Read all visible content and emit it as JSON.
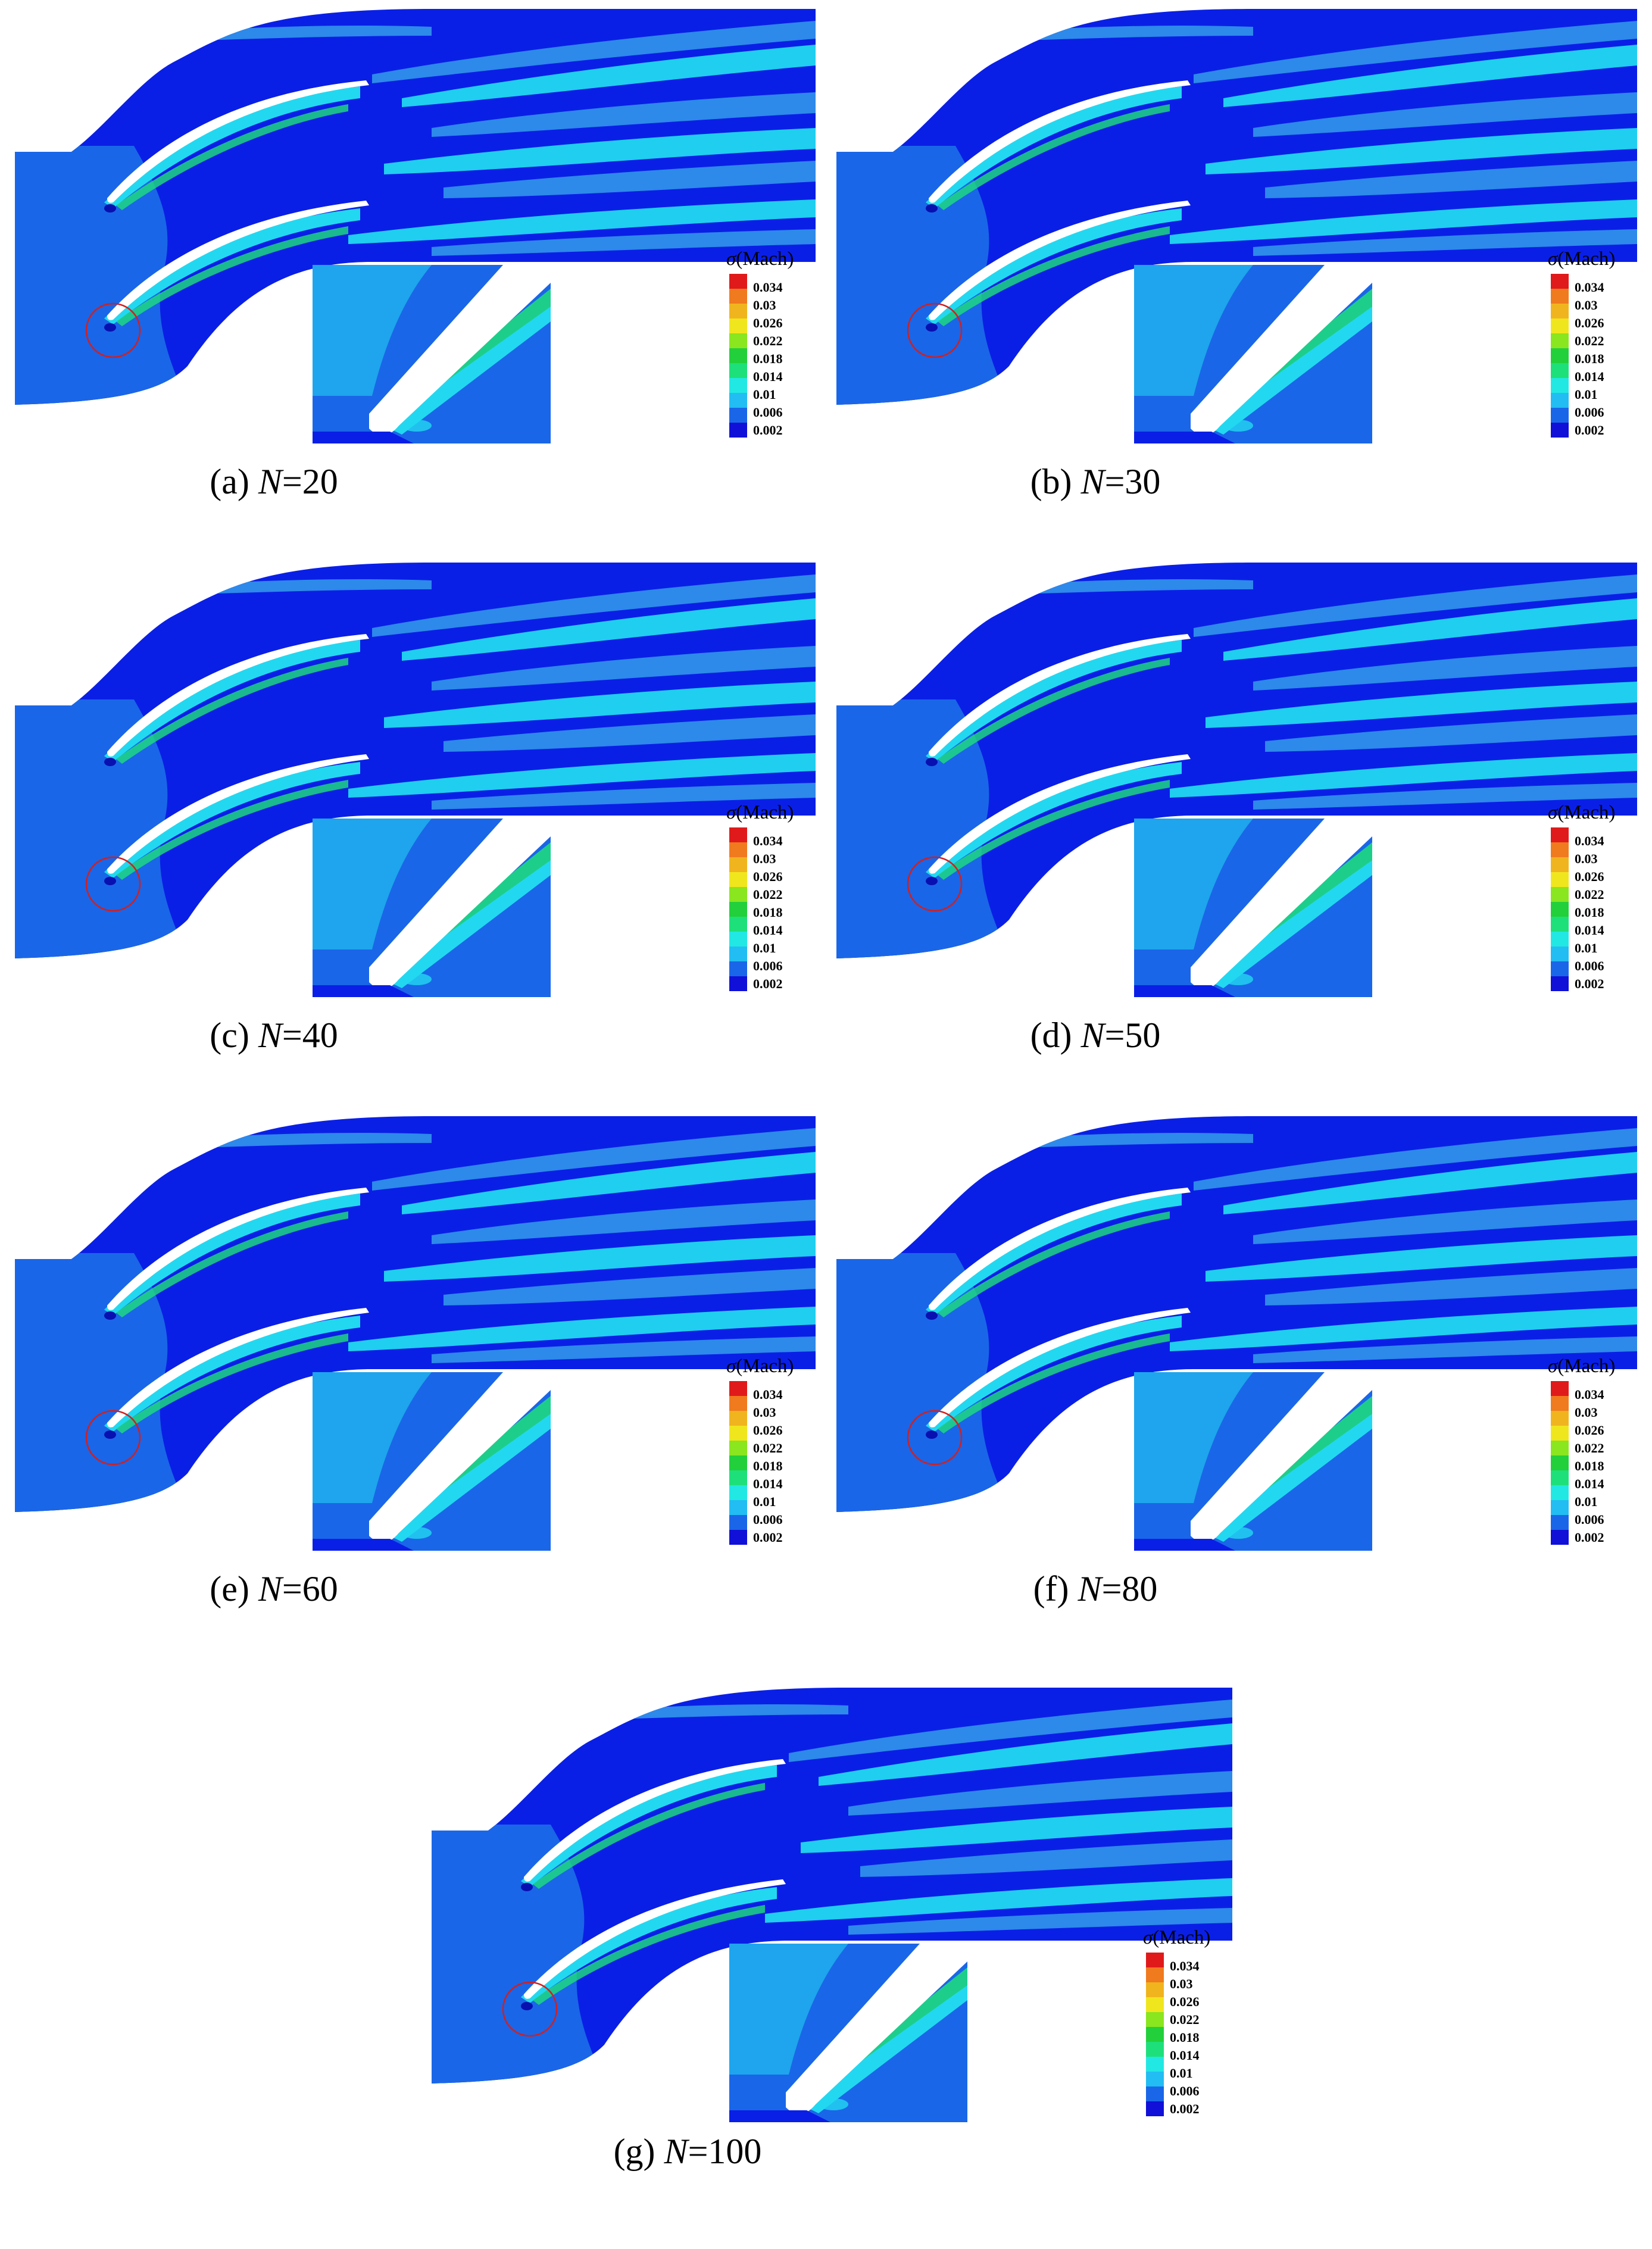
{
  "colors": {
    "background_blue": "#0a1fe6",
    "inlet_blue": "#1a66e8",
    "medium_blue": "#2f8fea",
    "cyan": "#22d8f0",
    "light_cyan": "#46f0f4",
    "green": "#1ee07a",
    "circle_red": "#d02020",
    "legend_scale": [
      "#1010d8",
      "#1a66e8",
      "#22bdf2",
      "#22e8e4",
      "#1ee07a",
      "#22d03c",
      "#8ae61e",
      "#f0e61e",
      "#f0b41e",
      "#f07a1e",
      "#e01a1a"
    ]
  },
  "legend": {
    "title_symbol": "σ",
    "title_unit": "(Mach)",
    "ticks": [
      "0.034",
      "0.03",
      "0.026",
      "0.022",
      "0.018",
      "0.014",
      "0.01",
      "0.006",
      "0.002"
    ]
  },
  "panels": [
    {
      "label": "(a)",
      "var": "N",
      "value": "=20"
    },
    {
      "label": "(b)",
      "var": "N",
      "value": "=30"
    },
    {
      "label": "(c)",
      "var": "N",
      "value": "=40"
    },
    {
      "label": "(d)",
      "var": "N",
      "value": "=50"
    },
    {
      "label": "(e)",
      "var": "N",
      "value": "=60"
    },
    {
      "label": "(f)",
      "var": "N",
      "value": "=80"
    },
    {
      "label": "(g)",
      "var": "N",
      "value": "=100"
    }
  ]
}
